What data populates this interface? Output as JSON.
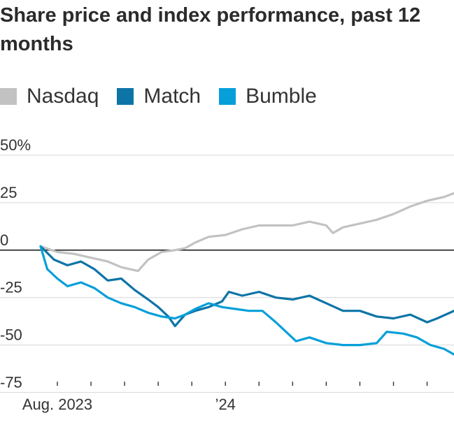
{
  "chart_data": {
    "type": "line",
    "title": "Share price and index performance, past 12 months",
    "xlabel": "",
    "ylabel": "",
    "ylim": [
      -80,
      55
    ],
    "y_ticks": [
      {
        "value": 50,
        "label": "50%"
      },
      {
        "value": 25,
        "label": "25"
      },
      {
        "value": 0,
        "label": "0"
      },
      {
        "value": -25,
        "label": "-25"
      },
      {
        "value": -50,
        "label": "-50"
      },
      {
        "value": -75,
        "label": "-75"
      }
    ],
    "x_range": [
      0,
      12.3
    ],
    "x_ticks": [
      0,
      1,
      2,
      3,
      4,
      5,
      6,
      7,
      8,
      9,
      10,
      11
    ],
    "x_labels": [
      {
        "month": 0,
        "label": "Aug. 2023"
      },
      {
        "month": 5,
        "label": "’24"
      }
    ],
    "legend": [
      "Nasdaq",
      "Match",
      "Bumble"
    ],
    "series": [
      {
        "name": "Nasdaq",
        "color": "#c2c2c2",
        "points": [
          [
            0,
            2
          ],
          [
            0.5,
            -1
          ],
          [
            1,
            -2
          ],
          [
            1.5,
            -4
          ],
          [
            2,
            -6
          ],
          [
            2.4,
            -9
          ],
          [
            2.9,
            -11
          ],
          [
            3.2,
            -5
          ],
          [
            3.6,
            -1
          ],
          [
            4,
            0
          ],
          [
            4.3,
            1
          ],
          [
            4.6,
            4
          ],
          [
            5,
            7
          ],
          [
            5.5,
            8
          ],
          [
            6,
            11
          ],
          [
            6.5,
            13
          ],
          [
            7,
            13
          ],
          [
            7.5,
            13
          ],
          [
            8,
            15
          ],
          [
            8.5,
            13
          ],
          [
            8.7,
            9
          ],
          [
            9,
            12
          ],
          [
            9.5,
            14
          ],
          [
            10,
            16
          ],
          [
            10.5,
            19
          ],
          [
            11,
            23
          ],
          [
            11.5,
            26
          ],
          [
            12,
            28
          ],
          [
            12.3,
            30
          ]
        ]
      },
      {
        "name": "Match",
        "color": "#0d74a7",
        "points": [
          [
            0,
            2
          ],
          [
            0.4,
            -5
          ],
          [
            0.8,
            -8
          ],
          [
            1.2,
            -6
          ],
          [
            1.6,
            -10
          ],
          [
            2,
            -16
          ],
          [
            2.4,
            -15
          ],
          [
            2.8,
            -21
          ],
          [
            3.2,
            -26
          ],
          [
            3.5,
            -30
          ],
          [
            3.8,
            -35
          ],
          [
            4,
            -40
          ],
          [
            4.3,
            -34
          ],
          [
            4.6,
            -32
          ],
          [
            5,
            -30
          ],
          [
            5.4,
            -27
          ],
          [
            5.6,
            -22
          ],
          [
            6,
            -24
          ],
          [
            6.5,
            -22
          ],
          [
            7,
            -25
          ],
          [
            7.5,
            -26
          ],
          [
            8,
            -24
          ],
          [
            8.5,
            -28
          ],
          [
            9,
            -32
          ],
          [
            9.5,
            -32
          ],
          [
            10,
            -35
          ],
          [
            10.5,
            -36
          ],
          [
            11,
            -34
          ],
          [
            11.5,
            -38
          ],
          [
            11.8,
            -36
          ],
          [
            12.3,
            -32
          ]
        ]
      },
      {
        "name": "Bumble",
        "color": "#079fd9",
        "points": [
          [
            0,
            2
          ],
          [
            0.2,
            -10
          ],
          [
            0.5,
            -15
          ],
          [
            0.8,
            -19
          ],
          [
            1.2,
            -17
          ],
          [
            1.6,
            -20
          ],
          [
            2,
            -25
          ],
          [
            2.4,
            -28
          ],
          [
            2.8,
            -30
          ],
          [
            3.2,
            -33
          ],
          [
            3.6,
            -35
          ],
          [
            4,
            -36
          ],
          [
            4.3,
            -34
          ],
          [
            4.6,
            -31
          ],
          [
            5,
            -28
          ],
          [
            5.4,
            -30
          ],
          [
            5.8,
            -31
          ],
          [
            6.2,
            -32
          ],
          [
            6.6,
            -32
          ],
          [
            7,
            -38
          ],
          [
            7.3,
            -43
          ],
          [
            7.6,
            -48
          ],
          [
            8,
            -46
          ],
          [
            8.5,
            -49
          ],
          [
            9,
            -50
          ],
          [
            9.5,
            -50
          ],
          [
            10,
            -49
          ],
          [
            10.3,
            -43
          ],
          [
            10.8,
            -44
          ],
          [
            11.2,
            -46
          ],
          [
            11.6,
            -50
          ],
          [
            12,
            -52
          ],
          [
            12.3,
            -55
          ]
        ]
      }
    ]
  }
}
